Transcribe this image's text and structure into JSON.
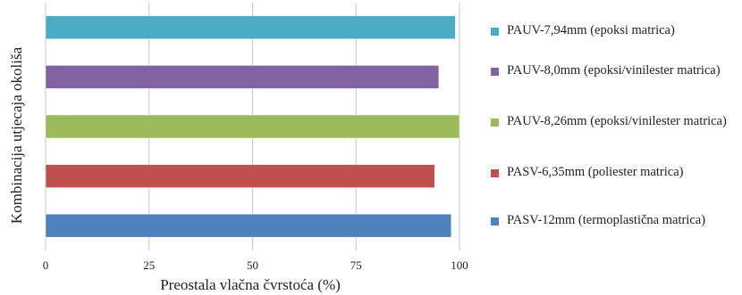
{
  "chart_data": {
    "type": "bar",
    "orientation": "horizontal",
    "xlabel": "Preostala vlačna čvrstoća (%)",
    "ylabel": "Kombinacija utjecaja okoliša",
    "xlim": [
      0,
      100
    ],
    "xticks": [
      "0",
      "25",
      "50",
      "75",
      "100"
    ],
    "grid": true,
    "legend_position": "right",
    "series": [
      {
        "name": "PAUV-7,94mm (epoksi matrica)",
        "value": 99,
        "color": "#4BACC6"
      },
      {
        "name": "PAUV-8,0mm (epoksi/vinilester matrica)",
        "value": 95,
        "color": "#8064A2"
      },
      {
        "name": "PAUV-8,26mm (epoksi/vinilester matrica)",
        "value": 100,
        "color": "#9BBB59"
      },
      {
        "name": "PASV-6,35mm (poliester matrica)",
        "value": 94,
        "color": "#C0504D"
      },
      {
        "name": "PASV-12mm (termoplastična matrica)",
        "value": 98,
        "color": "#4F81BD"
      }
    ]
  }
}
